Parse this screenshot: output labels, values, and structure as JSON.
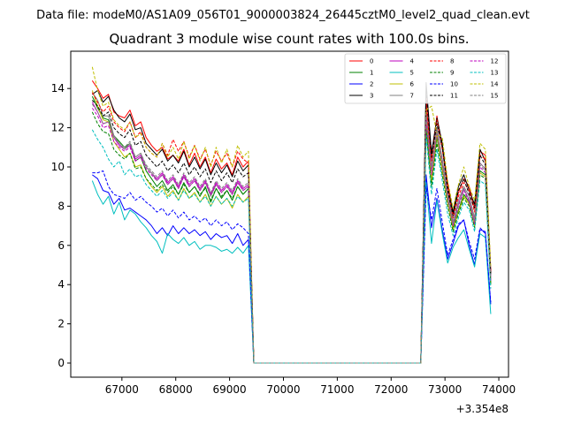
{
  "figure": {
    "suptitle": "Data file: modeM0/AS1A09_056T01_9000003824_26445cztM0_level2_quad_clean.evt"
  },
  "chart_data": {
    "type": "line",
    "title": "Quadrant 3 module wise count rates with 100.0s bins.",
    "xlabel": "",
    "ylabel": "",
    "x_offset_label": "+3.354e8",
    "xlim": [
      66050,
      74180
    ],
    "ylim": [
      -0.72,
      15.9
    ],
    "x_ticks": [
      67000,
      68000,
      69000,
      70000,
      71000,
      72000,
      73000,
      74000
    ],
    "x_tick_labels": [
      "67000",
      "68000",
      "69000",
      "70000",
      "71000",
      "72000",
      "73000",
      "74000"
    ],
    "y_ticks": [
      0,
      2,
      4,
      6,
      8,
      10,
      12,
      14
    ],
    "y_tick_labels": [
      "0",
      "2",
      "4",
      "6",
      "8",
      "10",
      "12",
      "14"
    ],
    "grid": false,
    "legend": {
      "placement": "upper-right",
      "columns": 4
    },
    "segment_1": {
      "x_start": 66450,
      "step": 100
    },
    "segment_2": {
      "x_start": 72650,
      "step": 100
    },
    "series": [
      {
        "name": "0",
        "color": "#ff0000",
        "dash": "solid",
        "seg1": [
          14.4,
          14.0,
          13.5,
          13.7,
          12.8,
          12.6,
          12.5,
          12.9,
          12.1,
          12.3,
          11.5,
          11.1,
          10.8,
          11.0,
          10.4,
          10.6,
          10.3,
          10.9,
          10.1,
          10.7,
          10.0,
          10.5,
          9.7,
          10.4,
          9.9,
          10.2,
          9.6,
          10.5,
          10.0,
          10.3
        ],
        "seg2": [
          13.5,
          10.4,
          12.6,
          11.0,
          9.2,
          7.6,
          8.7,
          9.4,
          9.0,
          7.9,
          10.8,
          10.6,
          4.7
        ]
      },
      {
        "name": "1",
        "color": "#008000",
        "dash": "solid",
        "seg1": [
          13.6,
          13.0,
          12.5,
          12.4,
          11.6,
          11.3,
          11.0,
          11.2,
          10.3,
          10.5,
          9.8,
          9.4,
          9.0,
          9.3,
          8.8,
          9.1,
          8.6,
          9.2,
          8.7,
          9.0,
          8.5,
          9.0,
          8.2,
          8.9,
          8.4,
          8.8,
          8.3,
          9.0,
          8.6,
          8.9
        ],
        "seg2": [
          12.1,
          9.2,
          11.5,
          9.9,
          8.2,
          6.9,
          7.8,
          8.6,
          8.2,
          7.0,
          9.8,
          9.6,
          4.1
        ]
      },
      {
        "name": "2",
        "color": "#0000ff",
        "dash": "solid",
        "seg1": [
          9.6,
          9.4,
          8.8,
          8.7,
          8.1,
          8.4,
          7.8,
          7.9,
          7.7,
          7.5,
          7.3,
          7.0,
          6.6,
          6.9,
          6.5,
          7.0,
          6.6,
          6.9,
          6.6,
          6.8,
          6.5,
          6.7,
          6.3,
          6.6,
          6.4,
          6.5,
          6.1,
          6.6,
          6.0,
          6.3
        ],
        "seg2": [
          9.6,
          6.9,
          8.4,
          6.8,
          5.3,
          6.1,
          7.0,
          7.3,
          6.0,
          5.0,
          6.8,
          6.7,
          3.0
        ]
      },
      {
        "name": "3",
        "color": "#000000",
        "dash": "solid",
        "seg1": [
          13.7,
          13.9,
          13.3,
          13.6,
          12.9,
          12.5,
          12.3,
          12.7,
          11.9,
          12.0,
          11.2,
          10.9,
          10.6,
          10.9,
          10.3,
          10.6,
          10.2,
          10.8,
          10.0,
          10.5,
          9.9,
          10.4,
          9.6,
          10.2,
          9.7,
          10.1,
          9.5,
          10.3,
          9.8,
          10.1
        ],
        "seg2": [
          14.3,
          10.7,
          12.5,
          11.2,
          9.0,
          7.7,
          9.0,
          9.6,
          8.8,
          8.1,
          10.9,
          10.3,
          4.6
        ]
      },
      {
        "name": "4",
        "color": "#bf00bf",
        "dash": "solid",
        "seg1": [
          13.3,
          12.8,
          12.2,
          12.3,
          11.5,
          11.1,
          10.9,
          11.1,
          10.4,
          10.6,
          10.0,
          9.7,
          9.4,
          9.7,
          9.2,
          9.5,
          9.0,
          9.6,
          9.1,
          9.4,
          8.9,
          9.3,
          8.6,
          9.2,
          8.8,
          9.1,
          8.7,
          9.3,
          8.9,
          9.1
        ],
        "seg2": [
          12.6,
          9.8,
          12.0,
          10.3,
          8.6,
          7.1,
          8.1,
          8.9,
          8.3,
          7.2,
          10.2,
          9.9,
          4.3
        ]
      },
      {
        "name": "5",
        "color": "#00bfbf",
        "dash": "solid",
        "seg1": [
          9.3,
          8.6,
          8.1,
          8.5,
          7.6,
          8.2,
          7.3,
          7.8,
          7.6,
          7.2,
          6.9,
          6.5,
          6.2,
          5.6,
          6.6,
          6.3,
          6.1,
          6.4,
          6.0,
          6.2,
          5.8,
          6.0,
          6.0,
          5.9,
          5.7,
          5.8,
          5.6,
          5.9,
          5.6,
          6.0
        ],
        "seg2": [
          9.2,
          6.1,
          8.3,
          6.6,
          5.1,
          5.9,
          6.4,
          6.8,
          5.8,
          4.9,
          6.6,
          6.4,
          2.5
        ]
      },
      {
        "name": "6",
        "color": "#bfbf00",
        "dash": "solid",
        "seg1": [
          13.9,
          13.1,
          12.4,
          12.3,
          11.3,
          10.9,
          10.5,
          10.7,
          10.0,
          10.1,
          9.4,
          9.0,
          8.7,
          9.0,
          8.5,
          8.8,
          8.3,
          8.9,
          8.4,
          8.7,
          8.2,
          8.6,
          8.0,
          8.5,
          8.1,
          8.4,
          7.9,
          8.6,
          8.2,
          8.5
        ],
        "seg2": [
          12.5,
          9.3,
          11.7,
          9.8,
          8.2,
          6.8,
          7.7,
          8.5,
          8.1,
          7.0,
          9.7,
          9.5,
          4.0
        ]
      },
      {
        "name": "7",
        "color": "#808080",
        "dash": "solid",
        "seg1": [
          13.8,
          13.4,
          12.6,
          12.6,
          11.6,
          11.2,
          10.9,
          11.2,
          10.5,
          10.7,
          10.0,
          9.7,
          9.3,
          9.6,
          9.1,
          9.4,
          8.9,
          9.5,
          9.0,
          9.3,
          8.8,
          9.2,
          8.5,
          9.1,
          8.7,
          9.0,
          8.6,
          9.2,
          8.8,
          9.0
        ],
        "seg2": [
          13.0,
          10.0,
          12.0,
          10.4,
          8.6,
          7.2,
          8.3,
          9.0,
          8.5,
          7.4,
          10.2,
          9.9,
          4.3
        ]
      },
      {
        "name": "8",
        "color": "#ff0000",
        "dash": "dashed",
        "seg1": [
          13.8,
          13.3,
          12.8,
          13.1,
          12.3,
          12.0,
          11.8,
          12.3,
          11.5,
          11.8,
          11.0,
          10.7,
          10.5,
          11.2,
          10.6,
          11.4,
          10.8,
          11.3,
          10.5,
          11.1,
          10.4,
          10.9,
          10.1,
          10.8,
          10.3,
          10.7,
          10.0,
          10.8,
          10.4,
          10.2
        ],
        "seg2": [
          13.0,
          10.3,
          12.4,
          10.9,
          9.0,
          7.4,
          8.5,
          9.2,
          8.8,
          7.7,
          10.6,
          10.4,
          4.6
        ]
      },
      {
        "name": "9",
        "color": "#008000",
        "dash": "dashed",
        "seg1": [
          12.8,
          12.2,
          11.8,
          11.7,
          10.9,
          10.6,
          10.4,
          10.7,
          9.9,
          10.0,
          9.4,
          9.1,
          8.8,
          9.1,
          8.7,
          9.0,
          8.6,
          9.1,
          8.7,
          9.0,
          8.6,
          8.9,
          8.3,
          8.9,
          8.5,
          8.8,
          8.4,
          9.0,
          8.6,
          8.9
        ],
        "seg2": [
          11.8,
          9.0,
          11.2,
          9.6,
          8.0,
          6.7,
          7.6,
          8.4,
          8.0,
          6.9,
          9.6,
          9.4,
          4.0
        ]
      },
      {
        "name": "10",
        "color": "#0000ff",
        "dash": "dashed",
        "seg1": [
          9.7,
          9.7,
          9.8,
          9.0,
          8.6,
          8.5,
          8.4,
          8.7,
          8.3,
          8.5,
          8.2,
          8.0,
          7.7,
          7.9,
          7.5,
          7.8,
          7.4,
          7.7,
          7.3,
          7.5,
          7.2,
          7.4,
          7.0,
          7.3,
          7.0,
          7.2,
          6.8,
          7.1,
          6.9,
          6.6
        ],
        "seg2": [
          9.0,
          7.3,
          8.9,
          7.2,
          5.5,
          6.3,
          7.1,
          7.3,
          6.2,
          5.3,
          6.9,
          6.6,
          3.1
        ]
      },
      {
        "name": "11",
        "color": "#000000",
        "dash": "dashed",
        "seg1": [
          13.4,
          13.1,
          12.6,
          12.8,
          12.0,
          11.7,
          11.5,
          11.9,
          11.1,
          11.3,
          10.6,
          10.3,
          10.0,
          10.3,
          9.8,
          10.1,
          9.7,
          10.2,
          9.6,
          10.0,
          9.5,
          9.9,
          9.2,
          9.8,
          9.3,
          9.7,
          9.2,
          9.9,
          9.5,
          9.7
        ],
        "seg2": [
          13.9,
          10.5,
          12.2,
          11.0,
          8.8,
          7.5,
          8.8,
          9.4,
          8.6,
          7.9,
          10.6,
          10.1,
          4.5
        ]
      },
      {
        "name": "12",
        "color": "#bf00bf",
        "dash": "dashed",
        "seg1": [
          13.0,
          12.6,
          12.0,
          12.1,
          11.3,
          11.0,
          10.8,
          11.0,
          10.3,
          10.5,
          9.9,
          9.6,
          9.3,
          9.6,
          9.1,
          9.4,
          8.9,
          9.5,
          9.0,
          9.3,
          8.8,
          9.2,
          8.6,
          9.1,
          8.7,
          9.0,
          8.6,
          9.2,
          8.8,
          9.0
        ],
        "seg2": [
          12.4,
          9.6,
          11.8,
          10.1,
          8.4,
          7.0,
          8.0,
          8.8,
          8.2,
          7.1,
          10.0,
          9.7,
          4.2
        ]
      },
      {
        "name": "13",
        "color": "#00bfbf",
        "dash": "dashed",
        "seg1": [
          11.9,
          11.4,
          11.0,
          10.4,
          10.0,
          10.3,
          9.6,
          9.9,
          9.5,
          9.6,
          9.1,
          8.8,
          8.5,
          8.8,
          8.4,
          8.7,
          8.3,
          8.8,
          8.4,
          8.6,
          8.2,
          8.5,
          8.0,
          8.5,
          8.1,
          8.4,
          8.0,
          8.5,
          8.2,
          8.4
        ],
        "seg2": [
          11.6,
          8.6,
          10.9,
          9.3,
          7.6,
          6.5,
          7.4,
          8.2,
          7.8,
          6.7,
          9.3,
          9.1,
          3.8
        ]
      },
      {
        "name": "14",
        "color": "#bfbf00",
        "dash": "dashed",
        "seg1": [
          15.1,
          13.9,
          13.1,
          13.3,
          12.4,
          12.1,
          11.9,
          12.3,
          11.5,
          11.7,
          11.0,
          10.7,
          10.5,
          11.2,
          10.5,
          11.0,
          10.4,
          11.3,
          10.4,
          11.1,
          10.3,
          11.0,
          10.0,
          11.0,
          10.2,
          10.9,
          10.0,
          11.1,
          10.5,
          10.8
        ],
        "seg2": [
          12.9,
          13.1,
          11.7,
          11.5,
          9.3,
          7.9,
          9.1,
          10.0,
          9.0,
          8.3,
          11.2,
          10.9,
          4.9
        ]
      },
      {
        "name": "15",
        "color": "#808080",
        "dash": "dashed",
        "seg1": [
          13.2,
          12.8,
          12.2,
          12.3,
          11.5,
          11.2,
          11.0,
          11.3,
          10.5,
          10.7,
          10.1,
          9.8,
          9.5,
          9.8,
          9.3,
          9.6,
          9.1,
          9.7,
          9.2,
          9.5,
          9.0,
          9.4,
          8.7,
          9.3,
          8.9,
          9.2,
          8.8,
          9.4,
          9.0,
          9.2
        ],
        "seg2": [
          12.7,
          9.8,
          11.9,
          10.2,
          8.5,
          7.1,
          8.1,
          8.9,
          8.3,
          7.2,
          10.1,
          9.8,
          4.3
        ]
      }
    ]
  }
}
